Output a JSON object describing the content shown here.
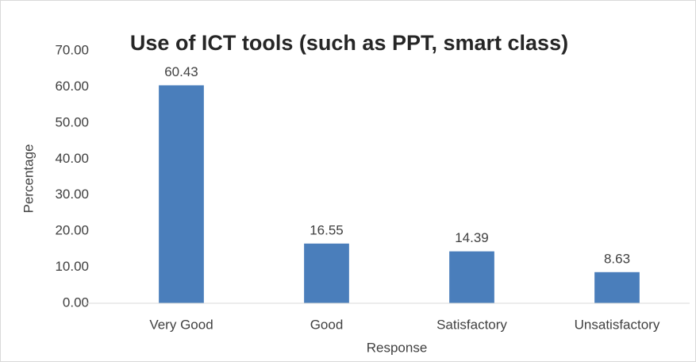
{
  "chart_data": {
    "type": "bar",
    "title": "Use of ICT tools (such as PPT, smart class)",
    "x_label": "Response",
    "y_label": "Percentage",
    "categories": [
      "Very Good",
      "Good",
      "Satisfactory",
      "Unsatisfactory"
    ],
    "values": [
      60.43,
      16.55,
      14.39,
      8.63
    ],
    "color": "#4a7ebb",
    "ylim": [
      0,
      70
    ],
    "yticks": [
      {
        "value": 0,
        "label": "0.00"
      },
      {
        "value": 10,
        "label": "10.00"
      },
      {
        "value": 20,
        "label": "20.00"
      },
      {
        "value": 30,
        "label": "30.00"
      },
      {
        "value": 40,
        "label": "40.00"
      },
      {
        "value": 50,
        "label": "50.00"
      },
      {
        "value": 60,
        "label": "60.00"
      },
      {
        "value": 70,
        "label": "70.00"
      }
    ],
    "grid": false
  }
}
